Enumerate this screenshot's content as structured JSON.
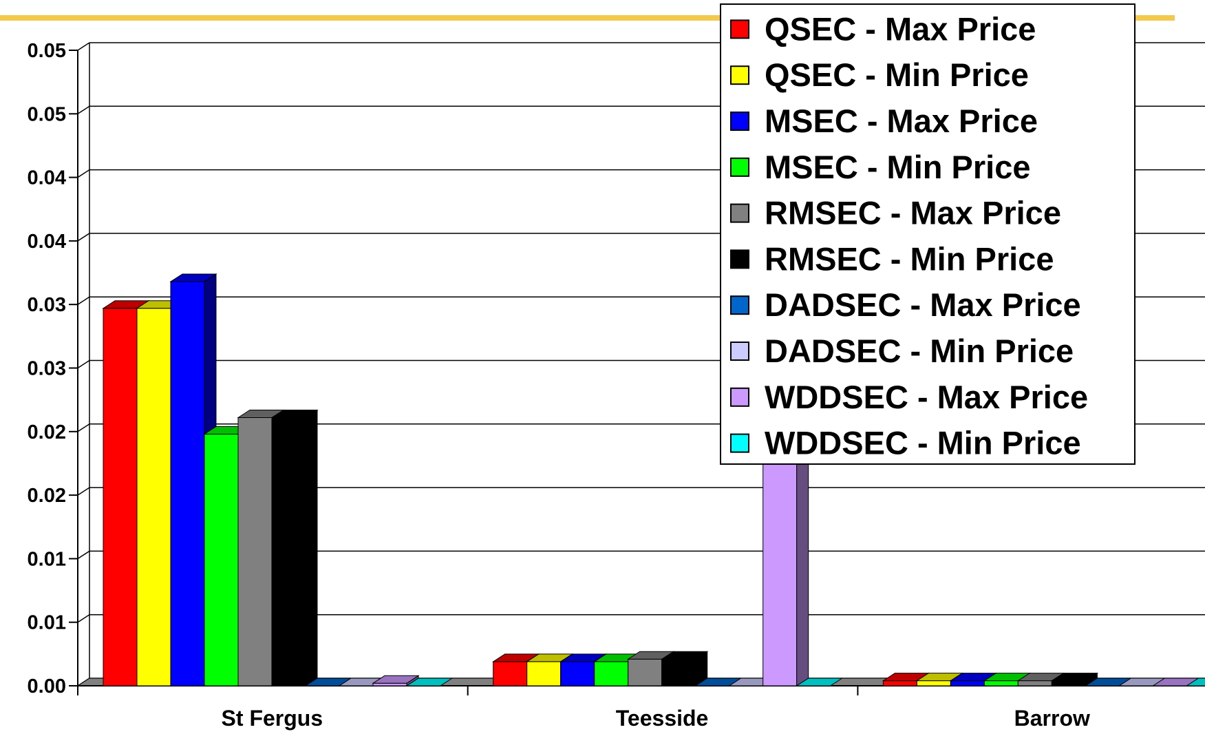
{
  "chart_data": {
    "type": "bar",
    "style": "3d-clustered-column",
    "categories": [
      "St Fergus",
      "Teesside",
      "Barrow"
    ],
    "y_tick_labels": [
      "0.00",
      "0.01",
      "0.01",
      "0.02",
      "0.02",
      "0.03",
      "0.03",
      "0.04",
      "0.04",
      "0.05",
      "0.05"
    ],
    "ylim": [
      0,
      0.05
    ],
    "grid": true,
    "legend_position": "top-right",
    "colors": {
      "accent_line": "#F2C94C",
      "grid": "#000000",
      "axis": "#000000"
    },
    "series": [
      {
        "name": "QSEC - Max Price",
        "color": "#FF0000",
        "values": [
          0.0297,
          0.0019,
          0.0004
        ]
      },
      {
        "name": "QSEC - Min Price",
        "color": "#FFFF00",
        "values": [
          0.0297,
          0.0019,
          0.0004
        ]
      },
      {
        "name": "MSEC - Max Price",
        "color": "#0000FF",
        "values": [
          0.0318,
          0.0019,
          0.0004
        ]
      },
      {
        "name": "MSEC - Min Price",
        "color": "#00FF00",
        "values": [
          0.0198,
          0.0019,
          0.0004
        ]
      },
      {
        "name": "RMSEC - Max Price",
        "color": "#808080",
        "values": [
          0.0211,
          0.0021,
          0.0004
        ]
      },
      {
        "name": "RMSEC - Min Price",
        "color": "#000000",
        "values": [
          0.0211,
          0.0021,
          0.0004
        ]
      },
      {
        "name": "DADSEC - Max Price",
        "color": "#0066CC",
        "values": [
          0,
          0,
          0
        ]
      },
      {
        "name": "DADSEC - Min Price",
        "color": "#CCCCFF",
        "values": [
          0,
          0,
          0
        ]
      },
      {
        "name": "WDDSEC - Max Price",
        "color": "#CC99FF",
        "values": [
          0.0002,
          0.05,
          0
        ]
      },
      {
        "name": "WDDSEC - Min Price",
        "color": "#00FFFF",
        "values": [
          0,
          0,
          0
        ]
      }
    ]
  }
}
